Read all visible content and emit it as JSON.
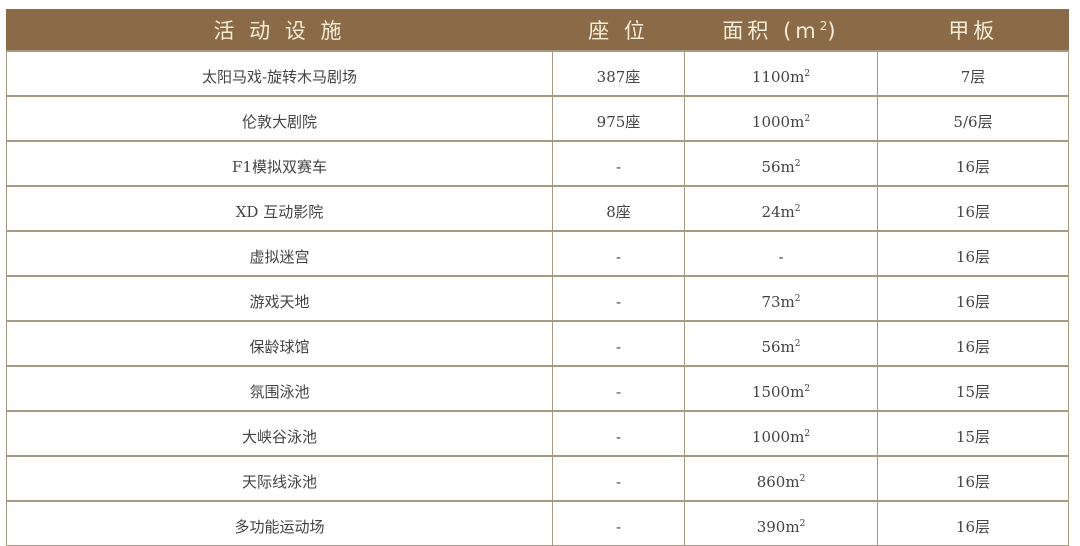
{
  "header": {
    "facility": "活 动 设 施",
    "seats": "座 位",
    "area": "面积 (m",
    "area_sup": "2",
    "area_close": ")",
    "deck": "甲板"
  },
  "colors": {
    "header_bg": "#8b6b47",
    "header_text": "#f6ecd8",
    "border": "#a59a82"
  },
  "rows": [
    {
      "facility": "太阳马戏-旋转木马剧场",
      "seats": "387座",
      "area": "1100m",
      "area_unit_sup": "2",
      "deck": "7层"
    },
    {
      "facility": "伦敦大剧院",
      "seats": "975座",
      "area": "1000m",
      "area_unit_sup": "2",
      "deck": "5/6层"
    },
    {
      "facility": "F1模拟双赛车",
      "seats": "-",
      "area": "56m",
      "area_unit_sup": "2",
      "deck": "16层"
    },
    {
      "facility": "XD 互动影院",
      "seats": "8座",
      "area": "24m",
      "area_unit_sup": "2",
      "deck": "16层"
    },
    {
      "facility": "虚拟迷宫",
      "seats": "-",
      "area": "-",
      "area_unit_sup": "",
      "deck": "16层"
    },
    {
      "facility": "游戏天地",
      "seats": "-",
      "area": "73m",
      "area_unit_sup": "2",
      "deck": "16层"
    },
    {
      "facility": "保龄球馆",
      "seats": "-",
      "area": "56m",
      "area_unit_sup": "2",
      "deck": "16层"
    },
    {
      "facility": "氛围泳池",
      "seats": "-",
      "area": "1500m",
      "area_unit_sup": "2",
      "deck": "15层"
    },
    {
      "facility": "大峡谷泳池",
      "seats": "-",
      "area": "1000m",
      "area_unit_sup": "2",
      "deck": "15层"
    },
    {
      "facility": "天际线泳池",
      "seats": "-",
      "area": "860m",
      "area_unit_sup": "2",
      "deck": "16层"
    },
    {
      "facility": "多功能运动场",
      "seats": "-",
      "area": "390m",
      "area_unit_sup": "2",
      "deck": "16层"
    }
  ]
}
